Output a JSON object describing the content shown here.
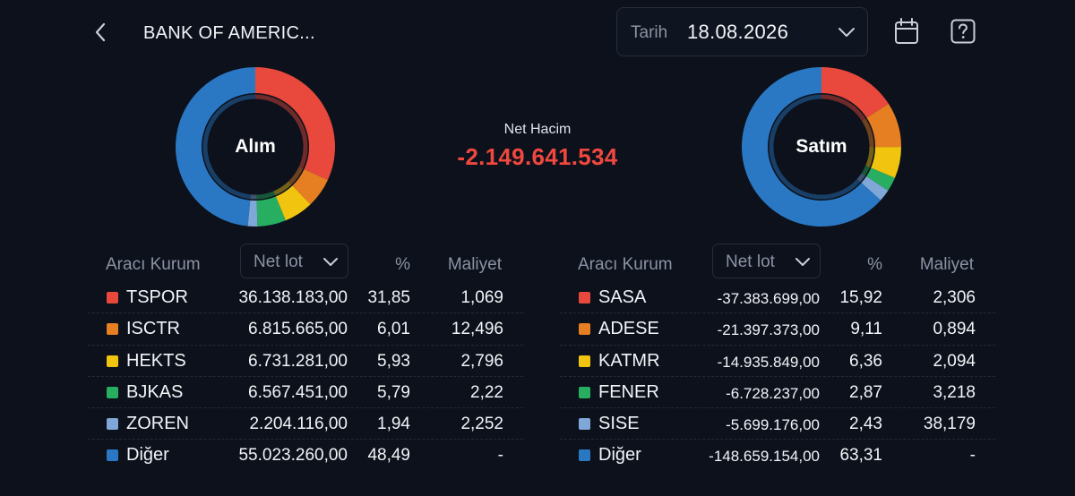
{
  "header": {
    "title": "BANK OF AMERIC...",
    "date_label": "Tarih",
    "date_value": "18.08.2026",
    "icons": [
      "chevron-left-icon",
      "chevron-down-icon",
      "calendar-icon",
      "help-icon"
    ]
  },
  "summary": {
    "net_label": "Net Hacim",
    "net_value": "-2.149.641.534",
    "net_color": "#f0483e"
  },
  "buy": {
    "label": "Alım",
    "columns": {
      "broker": "Aracı Kurum",
      "sort": "Net lot",
      "pct": "%",
      "cost": "Maliyet"
    },
    "rows": [
      {
        "code": "TSPOR",
        "lot": "36.138.183,00",
        "pct": "31,85",
        "cost": "1,069",
        "color": "#e8493c",
        "share": 31.85
      },
      {
        "code": "ISCTR",
        "lot": "6.815.665,00",
        "pct": "6,01",
        "cost": "12,496",
        "color": "#e67e22",
        "share": 6.01
      },
      {
        "code": "HEKTS",
        "lot": "6.731.281,00",
        "pct": "5,93",
        "cost": "2,796",
        "color": "#f1c40f",
        "share": 5.93
      },
      {
        "code": "BJKAS",
        "lot": "6.567.451,00",
        "pct": "5,79",
        "cost": "2,22",
        "color": "#27ae60",
        "share": 5.79
      },
      {
        "code": "ZOREN",
        "lot": "2.204.116,00",
        "pct": "1,94",
        "cost": "2,252",
        "color": "#7fa7d8",
        "share": 1.94
      },
      {
        "code": "Diğer",
        "lot": "55.023.260,00",
        "pct": "48,49",
        "cost": "-",
        "color": "#2a78c4",
        "share": 48.49
      }
    ]
  },
  "sell": {
    "label": "Satım",
    "columns": {
      "broker": "Aracı Kurum",
      "sort": "Net lot",
      "pct": "%",
      "cost": "Maliyet"
    },
    "rows": [
      {
        "code": "SASA",
        "lot": "-37.383.699,00",
        "pct": "15,92",
        "cost": "2,306",
        "color": "#e8493c",
        "share": 15.92
      },
      {
        "code": "ADESE",
        "lot": "-21.397.373,00",
        "pct": "9,11",
        "cost": "0,894",
        "color": "#e67e22",
        "share": 9.11
      },
      {
        "code": "KATMR",
        "lot": "-14.935.849,00",
        "pct": "6,36",
        "cost": "2,094",
        "color": "#f1c40f",
        "share": 6.36
      },
      {
        "code": "FENER",
        "lot": "-6.728.237,00",
        "pct": "2,87",
        "cost": "3,218",
        "color": "#27ae60",
        "share": 2.87
      },
      {
        "code": "SISE",
        "lot": "-5.699.176,00",
        "pct": "2,43",
        "cost": "38,179",
        "color": "#7fa7d8",
        "share": 2.43
      },
      {
        "code": "Diğer",
        "lot": "-148.659.154,00",
        "pct": "63,31",
        "cost": "-",
        "color": "#2a78c4",
        "share": 63.31
      }
    ]
  }
}
